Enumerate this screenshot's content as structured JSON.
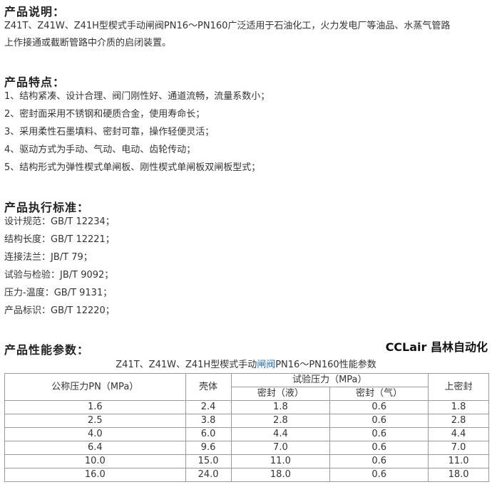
{
  "desc": {
    "title": "产品说明：",
    "lines": [
      "Z41T、Z41W、Z41H型楔式手动闸阀PN16～PN160广泛适用于石油化工，火力发电厂等油品、水蒸气管路",
      "上作接通或截断管路中介质的启闭装置。"
    ]
  },
  "features": {
    "title": "产品特点：",
    "items": [
      "1、结构紧凑、设计合理、阀门刚性好、通道流畅，流量系数小；",
      "2、密封面采用不锈钢和硬质合金，使用寿命长；",
      "3、采用柔性石墨填料、密封可靠，操作轻便灵活；",
      "4、驱动方式为手动、气动、电动、齿轮传动；",
      "5、结构形式为弹性楔式单闸板、刚性楔式单闸板双闸板型式；"
    ]
  },
  "standards": {
    "title": "产品执行标准：",
    "items": [
      "设计规范：GB/T 12234；",
      "结构长度：GB/T 12221；",
      "连接法兰：JB/T 79；",
      "试验与检验：JB/T 9092；",
      "压力-温度：GB/T 9131；",
      "产品标识：GB/T 12220；"
    ]
  },
  "params": {
    "title": "产品性能参数：",
    "caption_pre": "Z41T、Z41W、Z41H型楔式手动",
    "caption_link": "闸阀",
    "caption_post": "PN16～PN160性能参数",
    "headers": {
      "pn": "公称压力PN（MPa）",
      "shell": "壳体",
      "test": "试验压力（MPa）",
      "seal_liquid": "密封（液）",
      "seal_gas": "密封（气）",
      "upper_seal": "上密封"
    },
    "rows": [
      [
        "1.6",
        "2.4",
        "1.8",
        "0.6",
        "1.8"
      ],
      [
        "2.5",
        "3.8",
        "2.8",
        "0.6",
        "2.8"
      ],
      [
        "4.0",
        "6.0",
        "4.4",
        "0.6",
        "4.4"
      ],
      [
        "6.4",
        "9.6",
        "7.0",
        "0.6",
        "7.0"
      ],
      [
        "10.0",
        "15.0",
        "11.0",
        "0.6",
        "11.0"
      ],
      [
        "16.0",
        "24.0",
        "18.0",
        "0.6",
        "18.0"
      ]
    ]
  },
  "watermark": "CCLair 昌林自动化"
}
